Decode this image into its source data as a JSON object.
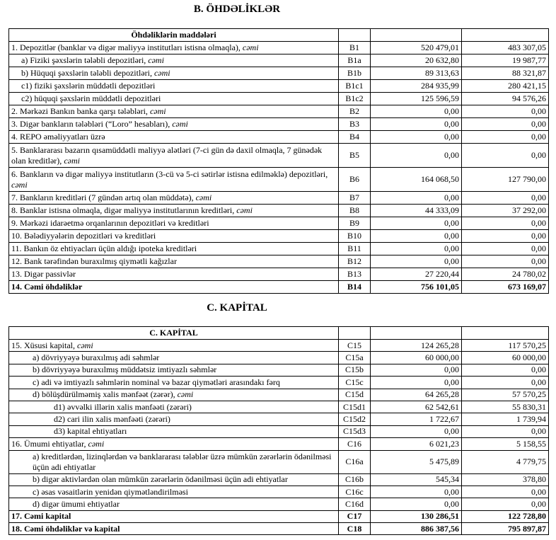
{
  "section_b": {
    "title": "B. ÖHDƏLİKLƏR",
    "table": {
      "header": "Öhdəliklərin maddələri",
      "rows": [
        {
          "label": "1. Depozitlər (banklar və digər maliyyə institutları istisna olmaqla),",
          "label_italic": "cəmi",
          "code": "B1",
          "current": "520 479,01",
          "previous": "483 307,05"
        },
        {
          "label": "a)  Fiziki şəxslərin tələbli depozitləri,",
          "label_italic": "cəmi",
          "code": "B1a",
          "current": "20 632,80",
          "previous": "19 987,77"
        },
        {
          "label": "b) Hüquqi şəxslərin tələbli depozitləri,",
          "label_italic": "cəmi",
          "code": "B1b",
          "current": "89 313,63",
          "previous": "88 321,87"
        },
        {
          "label": "c1) fiziki şəxslərin müddətli depozitləri",
          "code": "B1c1",
          "current": "284 935,99",
          "previous": "280 421,15"
        },
        {
          "label": "c2) hüquqi şəxslərin müddətli depozitləri",
          "code": "B1c2",
          "current": "125 596,59",
          "previous": "94 576,26"
        },
        {
          "label": "2. Mərkəzi Bankın banka qarşı tələbləri,",
          "label_italic": "cəmi",
          "code": "B2",
          "current": "0,00",
          "previous": "0,00"
        },
        {
          "label": "3. Digər bankların tələbləri (“Loro” hesabları),",
          "label_italic": "cəmi",
          "code": "B3",
          "current": "0,00",
          "previous": "0,00"
        },
        {
          "label": "4. REPO əməliyyatları  üzrə",
          "code": "B4",
          "current": "0,00",
          "previous": "0,00"
        },
        {
          "label": "5. Banklararası bazarın qısamüddətli maliyyə alətləri (7-ci gün də daxil olmaqla, 7 günədək olan kreditlər),",
          "label_italic": "cəmi",
          "code": "B5",
          "current": "0,00",
          "previous": "0,00"
        },
        {
          "label": "6. Bankların və digər maliyyə institutların (3-cü və 5-ci sətirlər istisna edilməklə) depozitləri,",
          "label_italic": "cəmi",
          "code": "B6",
          "current": "164 068,50",
          "previous": "127 790,00"
        },
        {
          "label": "7. Bankların kreditləri (7 gündən artıq olan müddətə),",
          "label_italic": "cəmi",
          "code": "B7",
          "current": "0,00",
          "previous": "0,00"
        },
        {
          "label": "8. Banklar istisna olmaqla, digər maliyyə institutlarının kreditləri,",
          "label_italic": "cəmi",
          "code": "B8",
          "current": "44 333,09",
          "previous": "37 292,00"
        },
        {
          "label": "9. Mərkəzi idarəetmə orqanlarının depozitləri və kreditləri",
          "code": "B9",
          "current": "0,00",
          "previous": "0,00"
        },
        {
          "label": "10. Bələdiyyələrin depozitləri və kreditləri",
          "code": "B10",
          "current": "0,00",
          "previous": "0,00"
        },
        {
          "label": "11. Bankın öz ehtiyacları üçün aldığı ipoteka kreditləri",
          "code": "B11",
          "current": "0,00",
          "previous": "0,00"
        },
        {
          "label": "12. Bank tərəfindən buraxılmış qiymətli kağızlar",
          "code": "B12",
          "current": "0,00",
          "previous": "0,00"
        },
        {
          "label": "13. Digər passivlər",
          "code": "B13",
          "current": "27 220,44",
          "previous": "24 780,02"
        },
        {
          "label": "14. Cəmi öhdəliklər",
          "code": "B14",
          "current": "756 101,05",
          "previous": "673 169,07"
        }
      ]
    }
  },
  "section_c": {
    "title": "C. KAPİTAL",
    "table": {
      "header": "C. KAPİTAL",
      "rows": [
        {
          "label": "15. Xüsusi kapital,",
          "label_italic": "cəmi",
          "code": "C15",
          "current": "124 265,28",
          "previous": "117 570,25"
        },
        {
          "label": "a) dövriyyəyə buraxılmış adi səhmlər",
          "code": "C15a",
          "current": "60 000,00",
          "previous": "60 000,00"
        },
        {
          "label": "b) dövriyyəyə buraxılmış müddətsiz imtiyazlı səhmlər",
          "code": "C15b",
          "current": "0,00",
          "previous": "0,00"
        },
        {
          "label": "c) adi və imtiyazlı səhmlərin nominal və bazar qiymətləri arasındakı fərq",
          "code": "C15c",
          "current": "0,00",
          "previous": "0,00"
        },
        {
          "label": "d) bölüşdürülməmiş xalis mənfəət (zərər),",
          "label_italic": "cəmi",
          "code": "C15d",
          "current": "64 265,28",
          "previous": "57 570,25"
        },
        {
          "label": "d1) əvvəlki illərin xalis mənfəəti (zərəri)",
          "code": "C15d1",
          "current": "62 542,61",
          "previous": "55 830,31"
        },
        {
          "label": "d2) cari ilin xalis mənfəəti (zərəri)",
          "code": "C15d2",
          "current": "1 722,67",
          "previous": "1 739,94"
        },
        {
          "label": "d3) kapital ehtiyatları",
          "code": "C15d3",
          "current": "0,00",
          "previous": "0,00"
        },
        {
          "label": "16. Ümumi ehtiyatlar,",
          "label_italic": "cəmi",
          "code": "C16",
          "current": "6 021,23",
          "previous": "5 158,55"
        },
        {
          "label": "a) kreditlərdən, lizinqlərdən və banklararası  tələblər üzrə mümkün zərərlərin ödənilməsi üçün adi ehtiyatlar",
          "code": "C16a",
          "current": "5 475,89",
          "previous": "4 779,75"
        },
        {
          "label": "b) digər aktivlərdən olan mümkün zərərlərin ödənilməsi üçün adi ehtiyatlar",
          "code": "C16b",
          "current": "545,34",
          "previous": "378,80"
        },
        {
          "label": "c) əsas vəsaitlərin yenidən qiymətləndirilməsi",
          "code": "C16c",
          "current": "0,00",
          "previous": "0,00"
        },
        {
          "label": "d) digər ümumi ehtiyatlar",
          "code": "C16d",
          "current": "0,00",
          "previous": "0,00"
        },
        {
          "label": "17. Cəmi kapital",
          "code": "C17",
          "current": "130 286,51",
          "previous": "122 728,80"
        },
        {
          "label": "18. Cəmi öhdəliklər və kapital",
          "code": "C18",
          "current": "886 387,56",
          "previous": "795 897,87"
        }
      ]
    }
  }
}
